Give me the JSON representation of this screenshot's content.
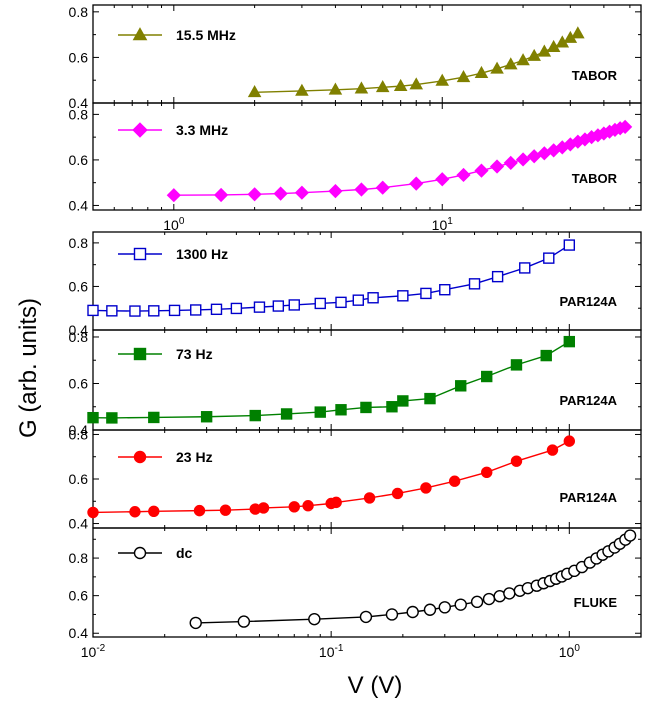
{
  "chart_data": {
    "type": "scatter",
    "ylabel": "G (arb. units)",
    "panels": [
      {
        "x_axis": "top",
        "x_scale": "log",
        "xlim": [
          0.5,
          55
        ],
        "x_ticks": [
          {
            "v": 1,
            "b": "10",
            "e": "0"
          },
          {
            "v": 10,
            "b": "10",
            "e": "1"
          }
        ],
        "ylim": [
          0.4,
          0.83
        ],
        "y_ticks": [
          {
            "v": 0.4,
            "t": "0.4"
          },
          {
            "v": 0.6,
            "t": "0.6"
          },
          {
            "v": 0.8,
            "t": "0.8"
          }
        ],
        "series": {
          "name": "15.5 MHz",
          "marker": "triangle",
          "filled": true,
          "color": "#808000",
          "x": [
            2.0,
            3.0,
            4.0,
            5.0,
            6.0,
            7.0,
            8.0,
            10.0,
            12.0,
            14.0,
            16.0,
            18.0,
            20.0,
            22.0,
            24.0,
            26.0,
            28.0,
            30.0,
            32.0
          ],
          "y": [
            0.447,
            0.453,
            0.458,
            0.463,
            0.469,
            0.474,
            0.481,
            0.497,
            0.513,
            0.531,
            0.55,
            0.569,
            0.587,
            0.606,
            0.625,
            0.645,
            0.665,
            0.685,
            0.705
          ]
        },
        "instrument": "TABOR"
      },
      {
        "x_axis": "bottom",
        "x_scale": "log",
        "xlim": [
          0.5,
          55
        ],
        "x_ticks": [
          {
            "v": 1,
            "b": "10",
            "e": "0"
          },
          {
            "v": 10,
            "b": "10",
            "e": "1"
          }
        ],
        "ylim": [
          0.38,
          0.85
        ],
        "y_ticks": [
          {
            "v": 0.4,
            "t": "0.4"
          },
          {
            "v": 0.6,
            "t": "0.6"
          },
          {
            "v": 0.8,
            "t": "0.8"
          }
        ],
        "series": {
          "name": "3.3 MHz",
          "marker": "diamond",
          "filled": true,
          "color": "#ff00ff",
          "x": [
            1.0,
            1.5,
            2.0,
            2.5,
            3.0,
            4.0,
            5.0,
            6.0,
            8.0,
            10.0,
            12.0,
            14.0,
            16.0,
            18.0,
            20.0,
            22.0,
            24.0,
            26.0,
            28.0,
            30.0,
            32.0,
            34.0,
            36.0,
            38.0,
            40.0,
            42.0,
            44.0,
            46.0,
            48.0
          ],
          "y": [
            0.445,
            0.446,
            0.449,
            0.452,
            0.456,
            0.463,
            0.47,
            0.478,
            0.496,
            0.515,
            0.534,
            0.553,
            0.571,
            0.587,
            0.602,
            0.616,
            0.629,
            0.642,
            0.655,
            0.668,
            0.68,
            0.69,
            0.7,
            0.708,
            0.716,
            0.724,
            0.732,
            0.739,
            0.745
          ]
        },
        "instrument": "TABOR"
      },
      {
        "x_axis": "top",
        "x_scale": "log",
        "xlim": [
          0.01,
          2.0
        ],
        "x_ticks": [],
        "ylim": [
          0.4,
          0.85
        ],
        "y_ticks": [
          {
            "v": 0.4,
            "t": "0.4"
          },
          {
            "v": 0.6,
            "t": "0.6"
          },
          {
            "v": 0.8,
            "t": "0.8"
          }
        ],
        "series": {
          "name": "1300 Hz",
          "marker": "square",
          "filled": false,
          "color": "#0000cc",
          "x": [
            0.01,
            0.012,
            0.015,
            0.018,
            0.022,
            0.027,
            0.033,
            0.04,
            0.05,
            0.06,
            0.07,
            0.09,
            0.11,
            0.13,
            0.15,
            0.2,
            0.25,
            0.3,
            0.4,
            0.5,
            0.65,
            0.82,
            1.0
          ],
          "y": [
            0.49,
            0.488,
            0.487,
            0.488,
            0.49,
            0.492,
            0.495,
            0.499,
            0.505,
            0.51,
            0.515,
            0.522,
            0.527,
            0.537,
            0.548,
            0.557,
            0.568,
            0.585,
            0.612,
            0.645,
            0.685,
            0.73,
            0.79
          ]
        },
        "instrument": "PAR124A"
      },
      {
        "x_axis": "none",
        "x_scale": "log",
        "xlim": [
          0.01,
          2.0
        ],
        "x_ticks": [],
        "ylim": [
          0.4,
          0.83
        ],
        "y_ticks": [
          {
            "v": 0.4,
            "t": "0.4"
          },
          {
            "v": 0.6,
            "t": "0.6"
          },
          {
            "v": 0.8,
            "t": "0.8"
          }
        ],
        "series": {
          "name": "73 Hz",
          "marker": "square",
          "filled": true,
          "color": "#008000",
          "x": [
            0.01,
            0.012,
            0.018,
            0.03,
            0.048,
            0.065,
            0.09,
            0.11,
            0.14,
            0.18,
            0.2,
            0.26,
            0.35,
            0.45,
            0.6,
            0.8,
            1.0
          ],
          "y": [
            0.453,
            0.452,
            0.454,
            0.457,
            0.462,
            0.469,
            0.477,
            0.487,
            0.497,
            0.5,
            0.525,
            0.535,
            0.59,
            0.63,
            0.68,
            0.72,
            0.78
          ]
        },
        "instrument": "PAR124A"
      },
      {
        "x_axis": "none",
        "x_scale": "log",
        "xlim": [
          0.01,
          2.0
        ],
        "x_ticks": [],
        "ylim": [
          0.38,
          0.82
        ],
        "y_ticks": [
          {
            "v": 0.4,
            "t": "0.4"
          },
          {
            "v": 0.6,
            "t": "0.6"
          },
          {
            "v": 0.8,
            "t": "0.8"
          }
        ],
        "series": {
          "name": "23 Hz",
          "marker": "circle",
          "filled": true,
          "color": "#ff0000",
          "x": [
            0.01,
            0.015,
            0.018,
            0.028,
            0.036,
            0.048,
            0.052,
            0.07,
            0.08,
            0.1,
            0.105,
            0.145,
            0.19,
            0.25,
            0.33,
            0.45,
            0.6,
            0.85,
            1.0
          ],
          "y": [
            0.45,
            0.453,
            0.455,
            0.458,
            0.46,
            0.465,
            0.47,
            0.475,
            0.48,
            0.49,
            0.495,
            0.515,
            0.535,
            0.56,
            0.59,
            0.63,
            0.68,
            0.73,
            0.77
          ]
        },
        "instrument": "PAR124A"
      },
      {
        "x_axis": "bottom",
        "x_scale": "log",
        "xlim": [
          0.01,
          2.0
        ],
        "x_ticks": [
          {
            "v": 0.01,
            "b": "10",
            "e": "-2"
          },
          {
            "v": 0.1,
            "b": "10",
            "e": "-1"
          },
          {
            "v": 1,
            "b": "10",
            "e": "0"
          }
        ],
        "ylim": [
          0.38,
          0.96
        ],
        "y_ticks": [
          {
            "v": 0.4,
            "t": "0.4"
          },
          {
            "v": 0.6,
            "t": "0.6"
          },
          {
            "v": 0.8,
            "t": "0.8"
          }
        ],
        "series": {
          "name": "dc",
          "marker": "circle",
          "filled": false,
          "color": "#000000",
          "x": [
            0.027,
            0.043,
            0.085,
            0.14,
            0.18,
            0.22,
            0.26,
            0.3,
            0.35,
            0.41,
            0.46,
            0.51,
            0.56,
            0.62,
            0.67,
            0.73,
            0.78,
            0.83,
            0.88,
            0.93,
            0.98,
            1.05,
            1.13,
            1.22,
            1.3,
            1.38,
            1.46,
            1.55,
            1.63,
            1.72,
            1.8
          ],
          "y": [
            0.455,
            0.462,
            0.475,
            0.487,
            0.5,
            0.513,
            0.525,
            0.538,
            0.552,
            0.567,
            0.582,
            0.597,
            0.612,
            0.626,
            0.64,
            0.653,
            0.666,
            0.678,
            0.69,
            0.702,
            0.716,
            0.732,
            0.752,
            0.776,
            0.798,
            0.818,
            0.836,
            0.856,
            0.876,
            0.898,
            0.92
          ]
        },
        "instrument": "FLUKE"
      }
    ],
    "xlabel": "V (V)"
  }
}
